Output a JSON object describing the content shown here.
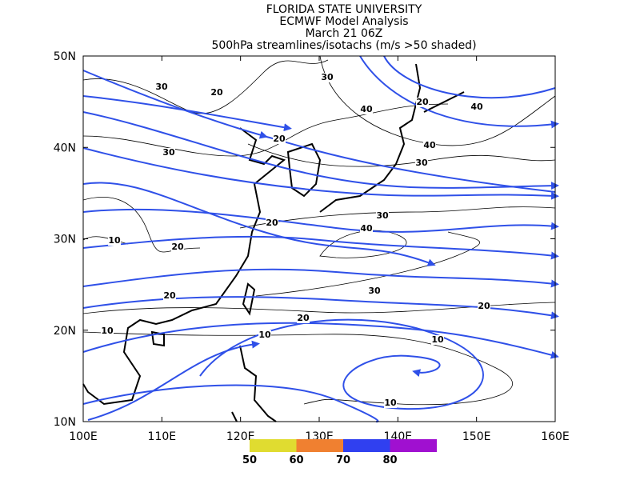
{
  "header": {
    "lines": [
      "FLORIDA STATE UNIVERSITY",
      "ECMWF Model Analysis",
      "March 21 06Z",
      "500hPa streamlines/isotachs (m/s >50 shaded)"
    ]
  },
  "map": {
    "lat_labels": [
      "50N",
      "40N",
      "30N",
      "20N",
      "10N"
    ],
    "lon_labels": [
      "100E",
      "110E",
      "120E",
      "130E",
      "140E",
      "150E",
      "160E"
    ],
    "isotach_labels": [
      "30",
      "20",
      "30",
      "20",
      "40",
      "40",
      "20",
      "30",
      "40",
      "30",
      "30",
      "20",
      "40",
      "10",
      "20",
      "30",
      "20",
      "20",
      "20",
      "10",
      "10",
      "10",
      "10"
    ]
  },
  "colorbar": {
    "labels": [
      50,
      60,
      70,
      80
    ],
    "colors": [
      "#e0dc30",
      "#f08030",
      "#3040f0",
      "#a010d0"
    ]
  }
}
